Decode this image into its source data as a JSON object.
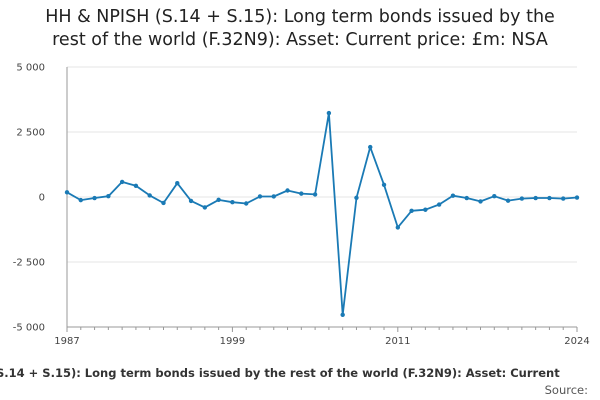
{
  "title": {
    "line1": "HH & NPISH (S.14 + S.15): Long term bonds issued by the",
    "line2": "rest of the world (F.32N9): Asset: Current price: £m: NSA"
  },
  "legend_label": "S.14 + S.15): Long term bonds issued by the rest of the world (F.32N9): Asset: Current",
  "source_label": "Source:",
  "colors": {
    "series": "#1a7ab5",
    "grid": "#e6e6e6",
    "axis": "#999999"
  },
  "chart_data": {
    "type": "line",
    "title": "HH & NPISH (S.14 + S.15): Long term bonds issued by the rest of the world (F.32N9): Asset: Current price: £m: NSA",
    "xlabel": "",
    "ylabel": "",
    "xlim": [
      1987,
      2024
    ],
    "ylim": [
      -5000,
      5000
    ],
    "x_ticks": [
      1987,
      1999,
      2011,
      2024
    ],
    "y_ticks": [
      5000,
      2500,
      0,
      -2500,
      -5000
    ],
    "y_tick_labels": [
      "5 000",
      "2 500",
      "0",
      "-2 500",
      "-5 000"
    ],
    "grid": true,
    "x": [
      1987,
      1988,
      1989,
      1990,
      1991,
      1992,
      1993,
      1994,
      1995,
      1996,
      1997,
      1998,
      1999,
      2000,
      2001,
      2002,
      2003,
      2004,
      2005,
      2006,
      2007,
      2008,
      2009,
      2010,
      2011,
      2012,
      2013,
      2014,
      2015,
      2016,
      2017,
      2018,
      2019,
      2020,
      2021,
      2022,
      2023,
      2024
    ],
    "values": [
      180,
      -120,
      -40,
      30,
      580,
      430,
      60,
      -230,
      530,
      -150,
      -400,
      -110,
      -200,
      -250,
      20,
      20,
      250,
      130,
      100,
      3230,
      -4530,
      -30,
      1920,
      470,
      -1170,
      -530,
      -490,
      -290,
      50,
      -40,
      -170,
      30,
      -140,
      -60,
      -40,
      -40,
      -60,
      -20
    ]
  }
}
